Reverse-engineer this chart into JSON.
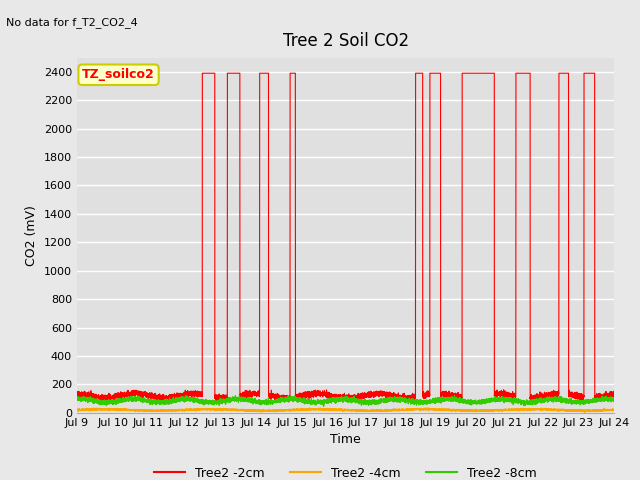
{
  "title": "Tree 2 Soil CO2",
  "no_data_text": "No data for f_T2_CO2_4",
  "xlabel": "Time",
  "ylabel": "CO2 (mV)",
  "ylim": [
    0,
    2500
  ],
  "yticks": [
    0,
    200,
    400,
    600,
    800,
    1000,
    1200,
    1400,
    1600,
    1800,
    2000,
    2200,
    2400
  ],
  "xlim_start": 9,
  "xlim_end": 24,
  "xtick_labels": [
    "Jul 9",
    "Jul 10",
    "Jul 11",
    "Jul 12",
    "Jul 13",
    "Jul 14",
    "Jul 15",
    "Jul 16",
    "Jul 17",
    "Jul 18",
    "Jul 19",
    "Jul 20",
    "Jul 21",
    "Jul 22",
    "Jul 23",
    "Jul 24"
  ],
  "xtick_positions": [
    9,
    10,
    11,
    12,
    13,
    14,
    15,
    16,
    17,
    18,
    19,
    20,
    21,
    22,
    23,
    24
  ],
  "fig_bg_color": "#e8e8e8",
  "plot_bg_color": "#e0e0e0",
  "grid_color": "#ffffff",
  "series": [
    {
      "label": "Tree2 -2cm",
      "color": "#ff0000"
    },
    {
      "label": "Tree2 -4cm",
      "color": "#ffa500"
    },
    {
      "label": "Tree2 -8cm",
      "color": "#33cc00"
    }
  ],
  "annot_text": "TZ_soilco2",
  "annot_facecolor": "#ffffcc",
  "annot_edgecolor": "#cccc00",
  "annot_fontsize": 9,
  "spike_top": 2390,
  "baseline_red": 120,
  "baseline_orange": 20,
  "baseline_green": 85,
  "red_spikes": [
    [
      12.5,
      12.85
    ],
    [
      13.2,
      13.55
    ],
    [
      14.1,
      14.35
    ],
    [
      14.95,
      15.1
    ],
    [
      18.45,
      18.65
    ],
    [
      18.85,
      19.15
    ],
    [
      19.75,
      20.65
    ],
    [
      21.25,
      21.65
    ],
    [
      22.45,
      22.72
    ],
    [
      23.15,
      23.45
    ]
  ]
}
